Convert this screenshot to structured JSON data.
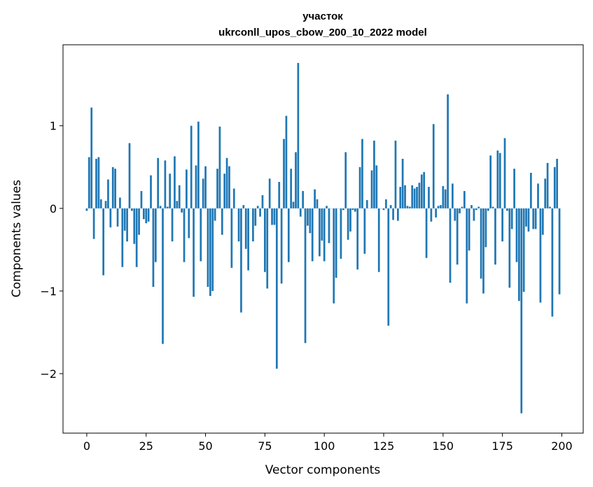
{
  "chart_data": {
    "type": "bar",
    "title": "участок",
    "subtitle": "ukrconll_upos_cbow_200_10_2022 model",
    "xlabel": "Vector components",
    "ylabel": "Components values",
    "xlim": [
      -10,
      209
    ],
    "ylim": [
      -2.72,
      1.98
    ],
    "xticks": [
      0,
      25,
      50,
      75,
      100,
      125,
      150,
      175,
      200
    ],
    "yticks": [
      -2,
      -1,
      0,
      1
    ],
    "ytick_labels": [
      "−2",
      "−1",
      "0",
      "1"
    ],
    "bar_color": "#1f77b4",
    "grid": false,
    "values": [
      -0.03,
      0.62,
      1.22,
      -0.37,
      0.6,
      0.62,
      0.11,
      -0.81,
      0.09,
      0.35,
      -0.23,
      0.5,
      0.48,
      -0.22,
      0.13,
      -0.71,
      -0.27,
      -0.4,
      0.79,
      -0.03,
      -0.43,
      -0.71,
      -0.32,
      0.21,
      -0.13,
      -0.18,
      -0.16,
      0.4,
      -0.95,
      -0.65,
      0.61,
      0.03,
      -1.64,
      0.58,
      0.02,
      0.42,
      -0.4,
      0.63,
      0.09,
      0.28,
      -0.05,
      -0.65,
      0.47,
      -0.36,
      1.0,
      -1.07,
      0.52,
      1.05,
      -0.64,
      0.36,
      0.51,
      -0.95,
      -1.06,
      -1.0,
      -0.15,
      0.48,
      0.99,
      -0.32,
      0.42,
      0.61,
      0.51,
      -0.72,
      0.24,
      0.0,
      -0.4,
      -1.26,
      0.04,
      -0.49,
      -0.75,
      0.0,
      -0.4,
      -0.21,
      0.03,
      -0.1,
      0.16,
      -0.77,
      -0.97,
      0.36,
      -0.2,
      -0.2,
      -1.94,
      0.32,
      -0.91,
      0.84,
      1.12,
      -0.65,
      0.48,
      0.08,
      0.68,
      1.76,
      -0.1,
      0.21,
      -1.63,
      -0.21,
      -0.3,
      -0.64,
      0.23,
      0.11,
      -0.58,
      -0.39,
      -0.64,
      0.03,
      -0.42,
      0.0,
      -1.15,
      -0.84,
      0.0,
      -0.61,
      -0.02,
      0.68,
      -0.38,
      -0.28,
      -0.02,
      -0.04,
      -0.74,
      0.5,
      0.84,
      -0.55,
      0.1,
      0.0,
      0.46,
      0.82,
      0.52,
      -0.77,
      0.0,
      -0.02,
      0.11,
      -1.42,
      0.04,
      -0.14,
      0.82,
      -0.15,
      0.26,
      0.6,
      0.28,
      0.03,
      0.02,
      0.28,
      0.24,
      0.26,
      0.31,
      0.41,
      0.44,
      -0.6,
      0.26,
      -0.16,
      1.02,
      -0.11,
      0.03,
      0.04,
      0.27,
      0.23,
      1.38,
      -0.9,
      0.3,
      -0.15,
      -0.68,
      -0.06,
      0.02,
      0.21,
      -1.15,
      -0.51,
      0.04,
      -0.15,
      -0.02,
      0.02,
      -0.85,
      -1.03,
      -0.47,
      -0.03,
      0.64,
      0.02,
      -0.68,
      0.7,
      0.67,
      -0.4,
      0.85,
      -0.03,
      -0.96,
      -0.25,
      0.48,
      -0.65,
      -1.12,
      -2.48,
      -1.01,
      -0.22,
      -0.28,
      0.43,
      -0.25,
      -0.25,
      0.3,
      -1.14,
      -0.32,
      0.36,
      0.55,
      0.02,
      -1.31,
      0.5,
      0.6,
      -1.04
    ]
  }
}
